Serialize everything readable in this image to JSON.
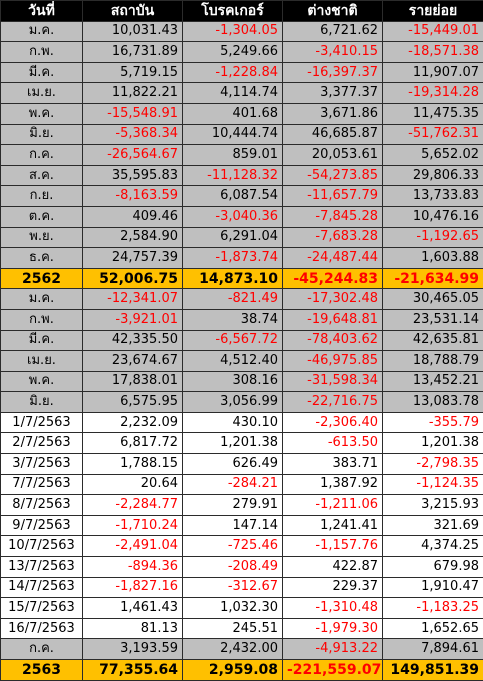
{
  "headers": [
    "วันที่",
    "สถาบัน",
    "โบรคเกอร์",
    "ต่างชาติ",
    "รายย่อย"
  ],
  "colors": {
    "header_bg": "#000000",
    "header_text": "#ffffff",
    "month_row_bg": "#bfbfbf",
    "total_row_bg": "#ffc000",
    "negative_text": "#ff0000"
  },
  "rows": [
    {
      "style": "gray",
      "cells": [
        "ม.ค.",
        "10,031.43",
        "-1,304.05",
        "6,721.62",
        "-15,449.01"
      ]
    },
    {
      "style": "gray",
      "cells": [
        "ก.พ.",
        "16,731.89",
        "5,249.66",
        "-3,410.15",
        "-18,571.38"
      ]
    },
    {
      "style": "gray",
      "cells": [
        "มี.ค.",
        "5,719.15",
        "-1,228.84",
        "-16,397.37",
        "11,907.07"
      ]
    },
    {
      "style": "gray",
      "cells": [
        "เม.ย.",
        "11,822.21",
        "4,114.74",
        "3,377.37",
        "-19,314.28"
      ]
    },
    {
      "style": "gray",
      "cells": [
        "พ.ค.",
        "-15,548.91",
        "401.68",
        "3,671.86",
        "11,475.35"
      ]
    },
    {
      "style": "gray",
      "cells": [
        "มิ.ย.",
        "-5,368.34",
        "10,444.74",
        "46,685.87",
        "-51,762.31"
      ]
    },
    {
      "style": "gray",
      "cells": [
        "ก.ค.",
        "-26,564.67",
        "859.01",
        "20,053.61",
        "5,652.02"
      ]
    },
    {
      "style": "gray",
      "cells": [
        "ส.ค.",
        "35,595.83",
        "-11,128.32",
        "-54,273.85",
        "29,806.33"
      ]
    },
    {
      "style": "gray",
      "cells": [
        "ก.ย.",
        "-8,163.59",
        "6,087.54",
        "-11,657.79",
        "13,733.83"
      ]
    },
    {
      "style": "gray",
      "cells": [
        "ต.ค.",
        "409.46",
        "-3,040.36",
        "-7,845.28",
        "10,476.16"
      ]
    },
    {
      "style": "gray",
      "cells": [
        "พ.ย.",
        "2,584.90",
        "6,291.04",
        "-7,683.28",
        "-1,192.65"
      ]
    },
    {
      "style": "gray",
      "cells": [
        "ธ.ค.",
        "24,757.39",
        "-1,873.74",
        "-24,487.44",
        "1,603.88"
      ]
    },
    {
      "style": "total",
      "cells": [
        "2562",
        "52,006.75",
        "14,873.10",
        "-45,244.83",
        "-21,634.99"
      ]
    },
    {
      "style": "gray",
      "cells": [
        "ม.ค.",
        "-12,341.07",
        "-821.49",
        "-17,302.48",
        "30,465.05"
      ]
    },
    {
      "style": "gray",
      "cells": [
        "ก.พ.",
        "-3,921.01",
        "38.74",
        "-19,648.81",
        "23,531.14"
      ]
    },
    {
      "style": "gray",
      "cells": [
        "มี.ค.",
        "42,335.50",
        "-6,567.72",
        "-78,403.62",
        "42,635.81"
      ]
    },
    {
      "style": "gray",
      "cells": [
        "เม.ย.",
        "23,674.67",
        "4,512.40",
        "-46,975.85",
        "18,788.79"
      ]
    },
    {
      "style": "gray",
      "cells": [
        "พ.ค.",
        "17,838.01",
        "308.16",
        "-31,598.34",
        "13,452.21"
      ]
    },
    {
      "style": "gray",
      "cells": [
        "มิ.ย.",
        "6,575.95",
        "3,056.99",
        "-22,716.75",
        "13,083.78"
      ]
    },
    {
      "style": "white",
      "cells": [
        "1/7/2563",
        "2,232.09",
        "430.10",
        "-2,306.40",
        "-355.79"
      ]
    },
    {
      "style": "white",
      "cells": [
        "2/7/2563",
        "6,817.72",
        "1,201.38",
        "-613.50",
        "1,201.38"
      ]
    },
    {
      "style": "white",
      "cells": [
        "3/7/2563",
        "1,788.15",
        "626.49",
        "383.71",
        "-2,798.35"
      ]
    },
    {
      "style": "white",
      "cells": [
        "7/7/2563",
        "20.64",
        "-284.21",
        "1,387.92",
        "-1,124.35"
      ]
    },
    {
      "style": "white",
      "cells": [
        "8/7/2563",
        "-2,284.77",
        "279.91",
        "-1,211.06",
        "3,215.93"
      ]
    },
    {
      "style": "white",
      "cells": [
        "9/7/2563",
        "-1,710.24",
        "147.14",
        "1,241.41",
        "321.69"
      ]
    },
    {
      "style": "white",
      "cells": [
        "10/7/2563",
        "-2,491.04",
        "-725.46",
        "-1,157.76",
        "4,374.25"
      ]
    },
    {
      "style": "white",
      "cells": [
        "13/7/2563",
        "-894.36",
        "-208.49",
        "422.87",
        "679.98"
      ]
    },
    {
      "style": "white",
      "cells": [
        "14/7/2563",
        "-1,827.16",
        "-312.67",
        "229.37",
        "1,910.47"
      ]
    },
    {
      "style": "white",
      "cells": [
        "15/7/2563",
        "1,461.43",
        "1,032.30",
        "-1,310.48",
        "-1,183.25"
      ]
    },
    {
      "style": "white",
      "cells": [
        "16/7/2563",
        "81.13",
        "245.51",
        "-1,979.30",
        "1,652.65"
      ]
    },
    {
      "style": "gray",
      "cells": [
        "ก.ค.",
        "3,193.59",
        "2,432.00",
        "-4,913.22",
        "7,894.61"
      ]
    },
    {
      "style": "total",
      "cells": [
        "2563",
        "77,355.64",
        "2,959.08",
        "-221,559.07",
        "149,851.39"
      ]
    }
  ]
}
